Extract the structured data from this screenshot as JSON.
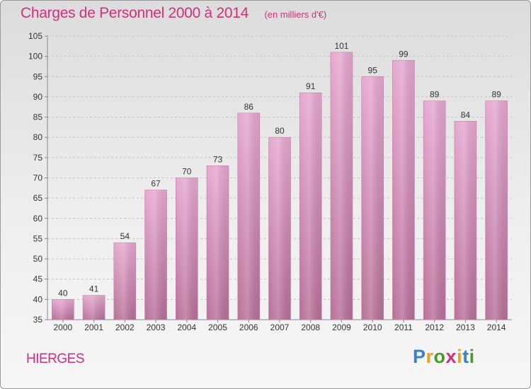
{
  "header": {
    "title": "Charges de Personnel 2000 à 2014",
    "unit": "(en milliers d'€)"
  },
  "footer": {
    "commune": "HIERGES",
    "logo_letters": [
      "P",
      "r",
      "o",
      "x",
      "i",
      "t",
      "i"
    ],
    "logo_colors": [
      "#3a7fd0",
      "#f0a020",
      "#4a9a2a",
      "#d0307c",
      "#f0a020",
      "#3a7fd0",
      "#4a9a2a"
    ]
  },
  "colors": {
    "bar_top": "#e6a8cf",
    "bar_bottom": "#b87099",
    "bar_edge": "#c080a8",
    "accent": "#d0307c"
  },
  "chart_data": {
    "type": "bar",
    "categories": [
      "2000",
      "2001",
      "2002",
      "2003",
      "2004",
      "2005",
      "2006",
      "2007",
      "2008",
      "2009",
      "2010",
      "2011",
      "2012",
      "2013",
      "2014"
    ],
    "values": [
      40,
      41,
      54,
      67,
      70,
      73,
      86,
      80,
      91,
      101,
      95,
      99,
      89,
      84,
      89
    ],
    "title": "Charges de Personnel 2000 à 2014",
    "subtitle": "(en milliers d'€)",
    "ylim": [
      35,
      105
    ],
    "yticks": [
      35,
      40,
      45,
      50,
      55,
      60,
      65,
      70,
      75,
      80,
      85,
      90,
      95,
      100,
      105
    ],
    "grid": "horizontal dashed",
    "data_labels": true
  }
}
